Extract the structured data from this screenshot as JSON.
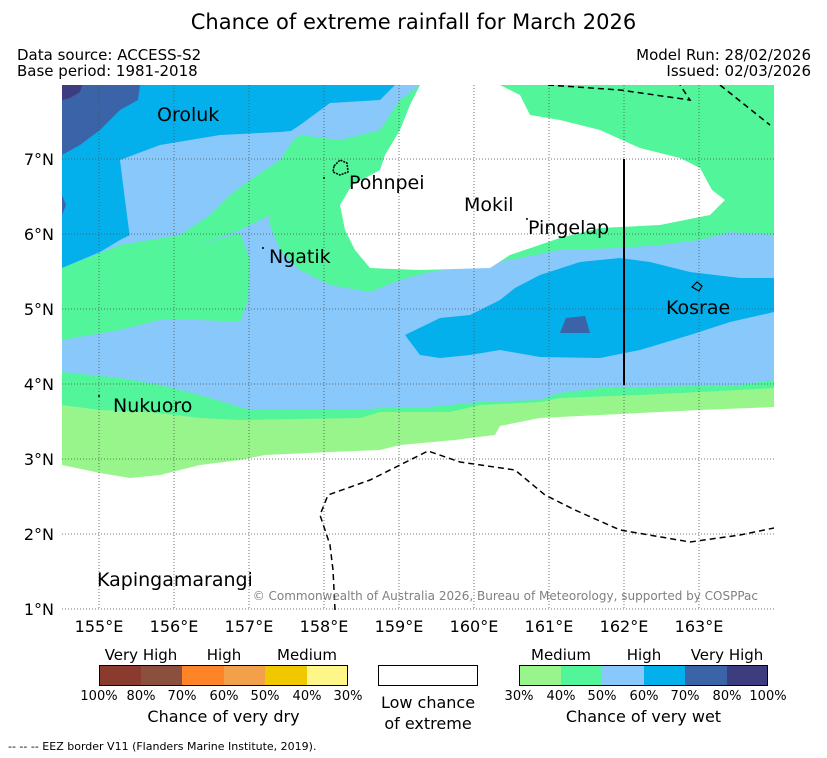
{
  "title": "Chance of extreme rainfall for March 2026",
  "header": {
    "data_source": "Data source: ACCESS-S2",
    "base_period": "Base period: 1981-2018",
    "model_run": "Model Run: 28/02/2026",
    "issued": "Issued: 02/03/2026"
  },
  "axes": {
    "lat_labels": [
      "7°N",
      "6°N",
      "5°N",
      "4°N",
      "3°N",
      "2°N",
      "1°N"
    ],
    "lon_labels": [
      "155°E",
      "156°E",
      "157°E",
      "158°E",
      "159°E",
      "160°E",
      "161°E",
      "162°E",
      "163°E"
    ]
  },
  "places": {
    "oroluk": "Oroluk",
    "pohnpei": "Pohnpei",
    "mokil": "Mokil",
    "pingelap": "Pingelap",
    "ngatik": "Ngatik",
    "kosrae": "Kosrae",
    "nukuoro": "Nukuoro",
    "kapingamarangi": "Kapingamarangi"
  },
  "copyright": "© Commonwealth of Australia 2026, Bureau of Meteorology, supported by COSPPac",
  "legend": {
    "dry": {
      "categories": [
        "Very High",
        "High",
        "Medium"
      ],
      "colors": [
        "#8b3a2e",
        "#8b4f3e",
        "#ff8327",
        "#f2a04a",
        "#efc800",
        "#fff68a"
      ],
      "ticks": [
        "100%",
        "80%",
        "70%",
        "60%",
        "50%",
        "40%",
        "30%"
      ],
      "caption": "Chance of very dry"
    },
    "neutral": {
      "caption_line1": "Low chance",
      "caption_line2": "of extreme"
    },
    "wet": {
      "categories": [
        "Medium",
        "High",
        "Very High"
      ],
      "colors": [
        "#98f58c",
        "#52f59a",
        "#88c8fb",
        "#03b0ec",
        "#3a63a8",
        "#3c3c7e"
      ],
      "ticks": [
        "30%",
        "40%",
        "50%",
        "60%",
        "70%",
        "80%",
        "100%"
      ],
      "caption": "Chance of very wet"
    }
  },
  "footnote": "--  --  -- EEZ border V11 (Flanders Marine Institute, 2019)."
}
